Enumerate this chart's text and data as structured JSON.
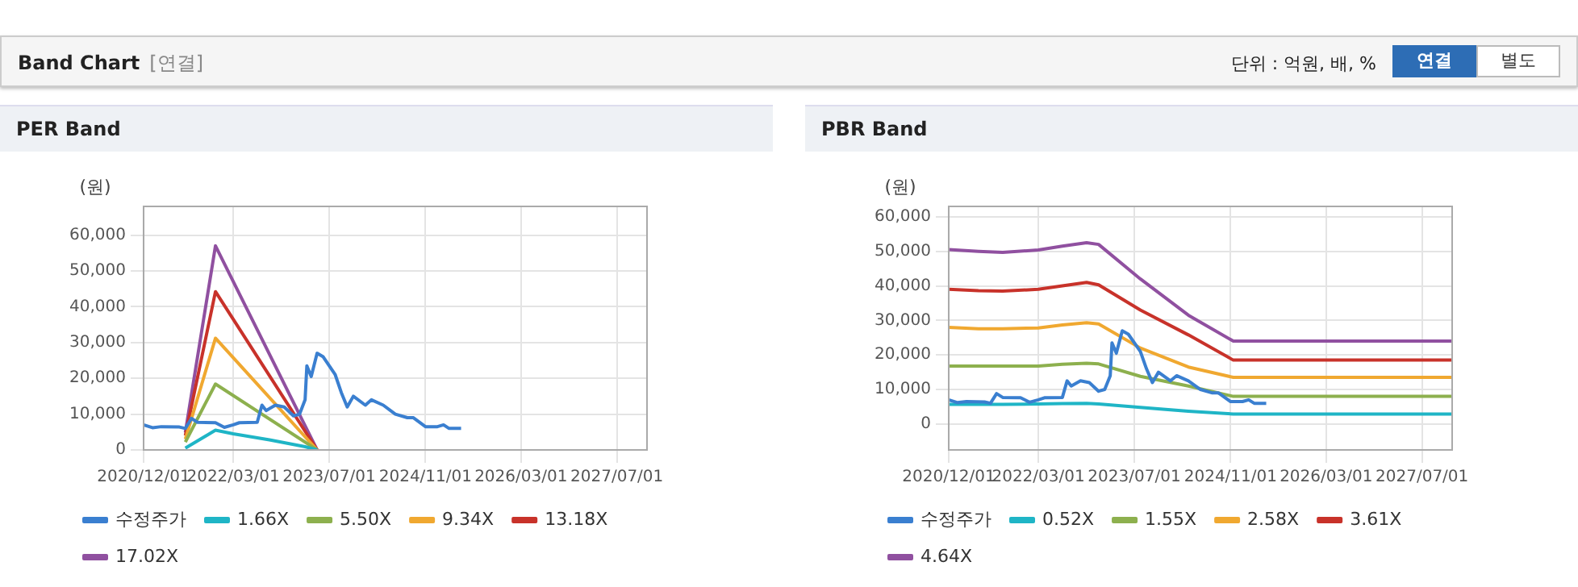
{
  "chart_data": [
    {
      "type": "other",
      "title": "Band Chart",
      "annotations": [
        "[연결]",
        "단위 : 억원, 배, %",
        "연결",
        "별도"
      ]
    },
    {
      "type": "line",
      "title": "PER Band",
      "ylabel": "(원)",
      "legend": "bottom",
      "grid": true,
      "marker": "none",
      "xlim": [
        "2020-12-01",
        "2027-12-01"
      ],
      "ylim": [
        0,
        68000
      ],
      "xticks": [
        {
          "value": "2020-12-01",
          "label": "2020/12/01"
        },
        {
          "value": "2022-03-01",
          "label": "2022/03/01"
        },
        {
          "value": "2023-07-01",
          "label": "2023/07/01"
        },
        {
          "value": "2024-11-01",
          "label": "2024/11/01"
        },
        {
          "value": "2026-03-01",
          "label": "2026/03/01"
        },
        {
          "value": "2027-07-01",
          "label": "2027/07/01"
        }
      ],
      "yticks": [
        0,
        {
          "value": 10000,
          "label": "10,000"
        },
        {
          "value": 20000,
          "label": "20,000"
        },
        {
          "value": 30000,
          "label": "30,000"
        },
        {
          "value": 40000,
          "label": "40,000"
        },
        {
          "value": 50000,
          "label": "50,000"
        },
        {
          "value": 60000,
          "label": "60,000"
        }
      ],
      "series": [
        {
          "name": "수정주가",
          "color": "#3a7fd0",
          "x": [
            "2020-12-01",
            "2021-01-15",
            "2021-03-01",
            "2021-06-01",
            "2021-07-01",
            "2021-08-01",
            "2021-09-01",
            "2021-12-01",
            "2022-01-15",
            "2022-03-01",
            "2022-04-01",
            "2022-07-01",
            "2022-07-25",
            "2022-08-15",
            "2022-10-01",
            "2022-11-15",
            "2023-01-01",
            "2023-02-01",
            "2023-03-01",
            "2023-03-10",
            "2023-04-01",
            "2023-05-01",
            "2023-06-01",
            "2023-08-01",
            "2023-09-01",
            "2023-10-01",
            "2023-11-01",
            "2024-01-01",
            "2024-02-01",
            "2024-04-01",
            "2024-06-01",
            "2024-08-01",
            "2024-09-01",
            "2024-11-01",
            "2025-01-01",
            "2025-02-01",
            "2025-03-01",
            "2025-05-01"
          ],
          "values": [
            7000,
            6200,
            6500,
            6400,
            6000,
            8800,
            7700,
            7600,
            6300,
            7000,
            7600,
            7700,
            12500,
            11000,
            12500,
            12000,
            9500,
            10000,
            14000,
            23500,
            20500,
            27000,
            26000,
            21000,
            16000,
            12000,
            15000,
            12500,
            14000,
            12500,
            10000,
            9000,
            9000,
            6500,
            6500,
            7000,
            6000,
            6000
          ]
        },
        {
          "name": "1.66X",
          "color": "#1fb5c6",
          "x": [
            "2021-07-01",
            "2021-12-01",
            "2022-03-01",
            "2022-09-01",
            "2023-03-01",
            "2023-05-01"
          ],
          "values": [
            500,
            5500,
            4500,
            2800,
            900,
            0
          ]
        },
        {
          "name": "5.50X",
          "color": "#8db04e",
          "x": [
            "2021-07-01",
            "2021-12-01",
            "2023-05-01"
          ],
          "values": [
            2200,
            18400,
            0
          ]
        },
        {
          "name": "9.34X",
          "color": "#f0a830",
          "x": [
            "2021-07-01",
            "2021-12-01",
            "2023-05-01"
          ],
          "values": [
            3000,
            31200,
            0
          ]
        },
        {
          "name": "13.18X",
          "color": "#c8322a",
          "x": [
            "2021-07-01",
            "2021-12-01",
            "2023-05-01"
          ],
          "values": [
            4000,
            44200,
            0
          ]
        },
        {
          "name": "17.02X",
          "color": "#9050a0",
          "x": [
            "2021-07-01",
            "2021-12-01",
            "2023-05-01"
          ],
          "values": [
            4900,
            57000,
            0
          ]
        }
      ]
    },
    {
      "type": "line",
      "title": "PBR Band",
      "ylabel": "(원)",
      "legend": "bottom",
      "grid": true,
      "marker": "none",
      "xlim": [
        "2020-12-01",
        "2027-12-01"
      ],
      "ylim": [
        -7500,
        63000
      ],
      "xticks": [
        {
          "value": "2020-12-01",
          "label": "2020/12/01"
        },
        {
          "value": "2022-03-01",
          "label": "2022/03/01"
        },
        {
          "value": "2023-07-01",
          "label": "2023/07/01"
        },
        {
          "value": "2024-11-01",
          "label": "2024/11/01"
        },
        {
          "value": "2026-03-01",
          "label": "2026/03/01"
        },
        {
          "value": "2027-07-01",
          "label": "2027/07/01"
        }
      ],
      "yticks": [
        0,
        {
          "value": 10000,
          "label": "10,000"
        },
        {
          "value": 20000,
          "label": "20,000"
        },
        {
          "value": 30000,
          "label": "30,000"
        },
        {
          "value": 40000,
          "label": "40,000"
        },
        {
          "value": 50000,
          "label": "50,000"
        },
        {
          "value": 60000,
          "label": "60,000"
        }
      ],
      "series": [
        {
          "name": "수정주가",
          "color": "#3a7fd0",
          "x": [
            "2020-12-01",
            "2021-01-15",
            "2021-03-01",
            "2021-06-01",
            "2021-07-01",
            "2021-08-01",
            "2021-09-01",
            "2021-12-01",
            "2022-01-15",
            "2022-03-01",
            "2022-04-01",
            "2022-07-01",
            "2022-07-25",
            "2022-08-15",
            "2022-10-01",
            "2022-11-15",
            "2023-01-01",
            "2023-02-01",
            "2023-03-01",
            "2023-03-10",
            "2023-04-01",
            "2023-05-01",
            "2023-06-01",
            "2023-08-01",
            "2023-09-01",
            "2023-10-01",
            "2023-11-01",
            "2024-01-01",
            "2024-02-01",
            "2024-04-01",
            "2024-06-01",
            "2024-08-01",
            "2024-09-01",
            "2024-11-01",
            "2025-01-01",
            "2025-02-01",
            "2025-03-01",
            "2025-05-01"
          ],
          "values": [
            7000,
            6200,
            6500,
            6400,
            6000,
            8800,
            7700,
            7600,
            6300,
            7000,
            7600,
            7700,
            12500,
            11000,
            12500,
            12000,
            9500,
            10000,
            14000,
            23500,
            20500,
            27000,
            26000,
            21000,
            16000,
            12000,
            15000,
            12500,
            14000,
            12500,
            10000,
            9000,
            9000,
            6500,
            6500,
            7000,
            6000,
            6000
          ]
        },
        {
          "name": "0.52X",
          "color": "#1fb5c6",
          "x": [
            "2020-12-01",
            "2021-05-01",
            "2021-09-01",
            "2022-03-01",
            "2022-07-01",
            "2022-11-01",
            "2023-01-01",
            "2023-08-01",
            "2024-04-01",
            "2024-11-15",
            "2027-12-01"
          ],
          "values": [
            5700,
            5700,
            5700,
            5800,
            5900,
            6000,
            5800,
            4800,
            3700,
            2900,
            2900
          ]
        },
        {
          "name": "1.55X",
          "color": "#8db04e",
          "x": [
            "2020-12-01",
            "2021-05-01",
            "2021-09-01",
            "2022-03-01",
            "2022-07-01",
            "2022-11-01",
            "2023-01-01",
            "2023-08-01",
            "2024-04-01",
            "2024-11-15",
            "2027-12-01"
          ],
          "values": [
            16800,
            16800,
            16800,
            16800,
            17300,
            17600,
            17400,
            13800,
            11000,
            8000,
            8000
          ]
        },
        {
          "name": "2.58X",
          "color": "#f0a830",
          "x": [
            "2020-12-01",
            "2021-05-01",
            "2021-09-01",
            "2022-03-01",
            "2022-07-01",
            "2022-11-01",
            "2023-01-01",
            "2023-08-01",
            "2024-04-01",
            "2024-11-15",
            "2027-12-01"
          ],
          "values": [
            28000,
            27600,
            27600,
            27800,
            28700,
            29300,
            29000,
            22000,
            16500,
            13500,
            13500
          ]
        },
        {
          "name": "3.61X",
          "color": "#c8322a",
          "x": [
            "2020-12-01",
            "2021-05-01",
            "2021-09-01",
            "2022-03-01",
            "2022-07-01",
            "2022-11-01",
            "2023-01-01",
            "2023-08-01",
            "2024-04-01",
            "2024-11-15",
            "2027-12-01"
          ],
          "values": [
            39000,
            38600,
            38500,
            39000,
            40000,
            41000,
            40300,
            33000,
            25800,
            18500,
            18500
          ]
        },
        {
          "name": "4.64X",
          "color": "#9050a0",
          "x": [
            "2020-12-01",
            "2021-05-01",
            "2021-09-01",
            "2022-03-01",
            "2022-07-01",
            "2022-11-01",
            "2023-01-01",
            "2023-08-01",
            "2024-04-01",
            "2024-11-15",
            "2027-12-01"
          ],
          "values": [
            50500,
            50000,
            49700,
            50400,
            51500,
            52500,
            52000,
            42000,
            31500,
            24000,
            24000
          ]
        }
      ]
    }
  ]
}
